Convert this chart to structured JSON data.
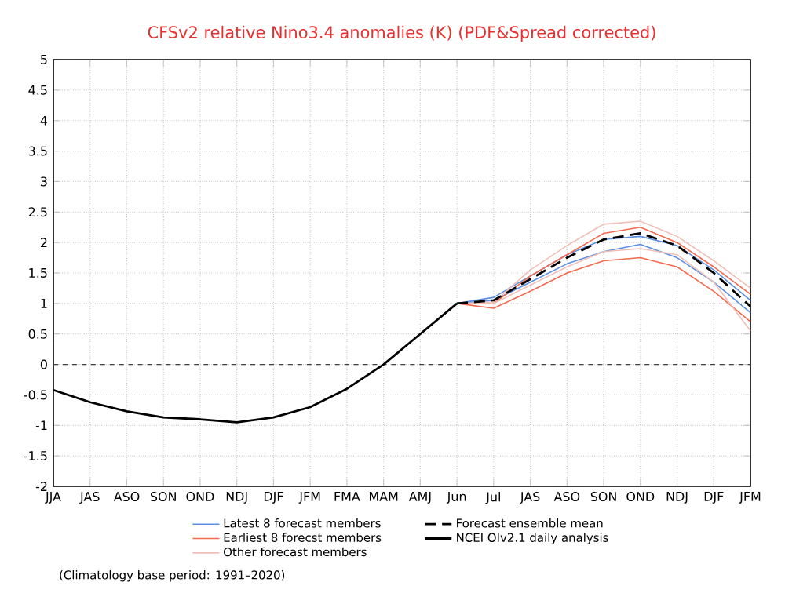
{
  "chart_data": {
    "type": "line",
    "title": "CFSv2 relative Nino3.4 anomalies (K) (PDF&Spread corrected)",
    "categories": [
      "JJA",
      "JAS",
      "ASO",
      "SON",
      "OND",
      "NDJ",
      "DJF",
      "JFM",
      "FMA",
      "MAM",
      "AMJ",
      "Jun",
      "Jul",
      "JAS",
      "ASO",
      "SON",
      "OND",
      "NDJ",
      "DJF",
      "JFM"
    ],
    "series": [
      {
        "name": "Latest 8 forecast members",
        "color": "#5b8fe0",
        "values": [
          null,
          null,
          null,
          null,
          null,
          null,
          null,
          null,
          null,
          null,
          null,
          1.0,
          1.1,
          1.45,
          1.8,
          2.05,
          2.1,
          1.95,
          1.55,
          1.05
        ]
      },
      {
        "color": "#5b8fe0",
        "values": [
          null,
          null,
          null,
          null,
          null,
          null,
          null,
          null,
          null,
          null,
          null,
          1.0,
          1.05,
          1.35,
          1.65,
          1.85,
          1.97,
          1.75,
          1.35,
          0.85
        ]
      },
      {
        "name": "Earliest 8 forecst members",
        "color": "#f26a4f",
        "values": [
          null,
          null,
          null,
          null,
          null,
          null,
          null,
          null,
          null,
          null,
          null,
          1.0,
          1.0,
          1.45,
          1.8,
          2.15,
          2.25,
          2.0,
          1.6,
          1.15
        ]
      },
      {
        "color": "#f26a4f",
        "values": [
          null,
          null,
          null,
          null,
          null,
          null,
          null,
          null,
          null,
          null,
          null,
          1.0,
          0.92,
          1.2,
          1.5,
          1.7,
          1.75,
          1.6,
          1.2,
          0.7
        ]
      },
      {
        "name": "Other forecast members",
        "color": "#f0c0b8",
        "values": [
          null,
          null,
          null,
          null,
          null,
          null,
          null,
          null,
          null,
          null,
          null,
          1.0,
          1.02,
          1.55,
          1.95,
          2.3,
          2.35,
          2.1,
          1.7,
          1.25
        ]
      },
      {
        "color": "#f0c0b8",
        "values": [
          null,
          null,
          null,
          null,
          null,
          null,
          null,
          null,
          null,
          null,
          null,
          1.0,
          1.0,
          1.3,
          1.6,
          1.85,
          1.9,
          1.8,
          1.35,
          0.55
        ]
      },
      {
        "name": "Forecast ensemble mean",
        "color": "#000000",
        "line_style": "dashed",
        "values": [
          null,
          null,
          null,
          null,
          null,
          null,
          null,
          null,
          null,
          null,
          null,
          1.0,
          1.05,
          1.4,
          1.75,
          2.05,
          2.15,
          1.95,
          1.5,
          0.95
        ]
      },
      {
        "name": "NCEI OIv2.1 daily analysis",
        "color": "#000000",
        "line_style": "solid",
        "values": [
          -0.42,
          -0.62,
          -0.77,
          -0.87,
          -0.9,
          -0.95,
          -0.87,
          -0.7,
          -0.4,
          0.0,
          0.5,
          1.0,
          null,
          null,
          null,
          null,
          null,
          null,
          null,
          null
        ]
      }
    ],
    "ylim": [
      -2,
      5
    ],
    "yticks": [
      -2,
      -1.5,
      -1,
      -0.5,
      0,
      0.5,
      1,
      1.5,
      2,
      2.5,
      3,
      3.5,
      4,
      4.5,
      5
    ],
    "grid": true,
    "legend": "bottom",
    "ref_lines": [
      {
        "axis": "y",
        "value": 0,
        "line_style": "dashed",
        "color": "#404040"
      }
    ],
    "annotations": [
      "(Climatology base period: 1991–2020)"
    ]
  }
}
